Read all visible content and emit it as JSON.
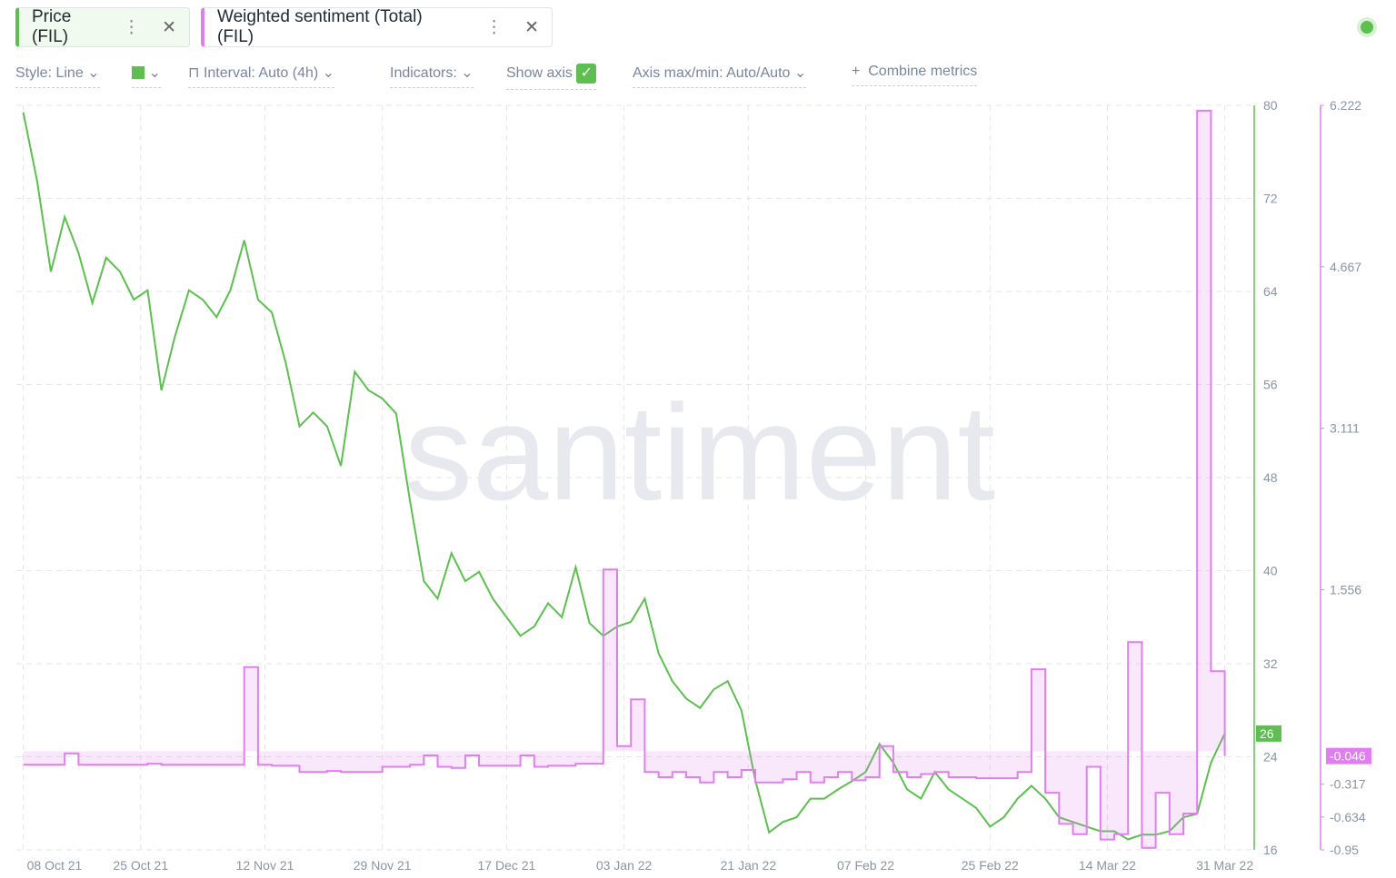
{
  "ui": {
    "toolbar": {
      "style": "Style: Line",
      "interval": "Interval: Auto (4h)",
      "indicators": "Indicators:",
      "show_axis": "Show axis",
      "axis_range": "Axis max/min: Auto/Auto",
      "combine": "Combine metrics"
    },
    "watermark": "santiment"
  },
  "chart_data": {
    "type": "line",
    "grid": true,
    "x": [
      "2021-10-08",
      "2021-10-10",
      "2021-10-12",
      "2021-10-14",
      "2021-10-16",
      "2021-10-18",
      "2021-10-20",
      "2021-10-22",
      "2021-10-24",
      "2021-10-26",
      "2021-10-28",
      "2021-10-30",
      "2021-11-01",
      "2021-11-03",
      "2021-11-05",
      "2021-11-07",
      "2021-11-09",
      "2021-11-11",
      "2021-11-13",
      "2021-11-15",
      "2021-11-17",
      "2021-11-19",
      "2021-11-21",
      "2021-11-23",
      "2021-11-25",
      "2021-11-27",
      "2021-11-29",
      "2021-12-01",
      "2021-12-03",
      "2021-12-05",
      "2021-12-07",
      "2021-12-09",
      "2021-12-11",
      "2021-12-13",
      "2021-12-15",
      "2021-12-17",
      "2021-12-19",
      "2021-12-21",
      "2021-12-23",
      "2021-12-25",
      "2021-12-27",
      "2021-12-29",
      "2021-12-31",
      "2022-01-02",
      "2022-01-04",
      "2022-01-06",
      "2022-01-08",
      "2022-01-10",
      "2022-01-12",
      "2022-01-14",
      "2022-01-16",
      "2022-01-18",
      "2022-01-20",
      "2022-01-22",
      "2022-01-24",
      "2022-01-26",
      "2022-01-28",
      "2022-01-30",
      "2022-02-01",
      "2022-02-03",
      "2022-02-05",
      "2022-02-07",
      "2022-02-09",
      "2022-02-11",
      "2022-02-13",
      "2022-02-15",
      "2022-02-17",
      "2022-02-19",
      "2022-02-21",
      "2022-02-23",
      "2022-02-25",
      "2022-02-27",
      "2022-03-01",
      "2022-03-03",
      "2022-03-05",
      "2022-03-07",
      "2022-03-09",
      "2022-03-11",
      "2022-03-13",
      "2022-03-15",
      "2022-03-17",
      "2022-03-19",
      "2022-03-21",
      "2022-03-23",
      "2022-03-25",
      "2022-03-27",
      "2022-03-29",
      "2022-03-31"
    ],
    "series": [
      {
        "name": "Price (FIL)",
        "color": "#5cbf4f",
        "axis": "y",
        "values": [
          79.4,
          73.5,
          65.7,
          70.4,
          67.3,
          63.0,
          66.9,
          65.7,
          63.3,
          64.1,
          55.5,
          60.2,
          64.1,
          63.3,
          61.8,
          64.1,
          68.4,
          63.3,
          62.2,
          57.9,
          52.4,
          53.6,
          52.4,
          49.0,
          57.1,
          55.5,
          54.8,
          53.5,
          46.0,
          39.1,
          37.6,
          41.5,
          39.1,
          39.9,
          37.6,
          36.0,
          34.4,
          35.2,
          37.2,
          36.0,
          40.3,
          35.5,
          34.4,
          35.2,
          35.6,
          37.6,
          32.9,
          30.5,
          29.0,
          28.2,
          29.8,
          30.5,
          28.0,
          22.0,
          17.5,
          18.4,
          18.8,
          20.4,
          20.4,
          21.2,
          21.9,
          22.7,
          25.1,
          23.5,
          21.2,
          20.4,
          22.7,
          21.2,
          20.4,
          19.6,
          18.0,
          18.8,
          20.4,
          21.5,
          20.4,
          18.8,
          18.4,
          18.0,
          17.6,
          17.6,
          16.9,
          17.3,
          17.3,
          17.6,
          18.8,
          19.1,
          23.5,
          26
        ]
      },
      {
        "name": "Weighted sentiment (Total) (FIL)",
        "color": "#e07ef0",
        "axis": "y2",
        "values": [
          -0.13,
          -0.13,
          -0.13,
          -0.02,
          -0.13,
          -0.13,
          -0.13,
          -0.13,
          -0.13,
          -0.12,
          -0.13,
          -0.13,
          -0.13,
          -0.13,
          -0.13,
          -0.13,
          0.81,
          -0.13,
          -0.14,
          -0.14,
          -0.2,
          -0.2,
          -0.19,
          -0.2,
          -0.2,
          -0.2,
          -0.15,
          -0.15,
          -0.13,
          -0.04,
          -0.15,
          -0.16,
          -0.04,
          -0.14,
          -0.14,
          -0.14,
          -0.04,
          -0.15,
          -0.14,
          -0.14,
          -0.12,
          -0.12,
          1.75,
          0.05,
          0.5,
          -0.2,
          -0.25,
          -0.2,
          -0.25,
          -0.3,
          -0.2,
          -0.25,
          -0.18,
          -0.3,
          -0.3,
          -0.27,
          -0.2,
          -0.3,
          -0.25,
          -0.2,
          -0.28,
          -0.25,
          0.05,
          -0.2,
          -0.25,
          -0.22,
          -0.2,
          -0.25,
          -0.25,
          -0.26,
          -0.26,
          -0.26,
          -0.2,
          0.79,
          -0.4,
          -0.7,
          -0.8,
          -0.15,
          -0.85,
          -0.8,
          1.05,
          -0.93,
          -0.4,
          -0.8,
          -0.6,
          6.17,
          0.77,
          -0.046
        ]
      }
    ],
    "xlim": [
      "2021-10-07",
      "2022-04-04"
    ],
    "xticks": [
      {
        "value": "2021-10-08",
        "label": "08 Oct 21"
      },
      {
        "value": "2021-10-25",
        "label": "25 Oct 21"
      },
      {
        "value": "2021-11-12",
        "label": "12 Nov 21"
      },
      {
        "value": "2021-11-29",
        "label": "29 Nov 21"
      },
      {
        "value": "2021-12-17",
        "label": "17 Dec 21"
      },
      {
        "value": "2022-01-03",
        "label": "03 Jan 22"
      },
      {
        "value": "2022-01-21",
        "label": "21 Jan 22"
      },
      {
        "value": "2022-02-07",
        "label": "07 Feb 22"
      },
      {
        "value": "2022-02-25",
        "label": "25 Feb 22"
      },
      {
        "value": "2022-03-14",
        "label": "14 Mar 22"
      },
      {
        "value": "2022-03-31",
        "label": "31 Mar 22"
      }
    ],
    "ylim": [
      16,
      80
    ],
    "yticks": [
      16,
      24,
      32,
      40,
      48,
      56,
      64,
      72,
      80
    ],
    "y2lim": [
      -0.95,
      6.222
    ],
    "y2ticks": [
      -0.95,
      -0.634,
      -0.317,
      1.556,
      3.111,
      4.667,
      6.222
    ]
  }
}
